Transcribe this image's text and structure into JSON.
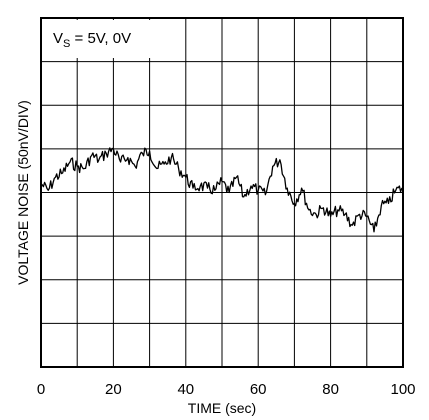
{
  "chart_data": {
    "type": "line",
    "xlabel": "TIME (sec)",
    "ylabel": "VOLTAGE NOISE (50nV/DIV)",
    "xlim": [
      0,
      100
    ],
    "x_ticks": [
      "0",
      "20",
      "40",
      "60",
      "80",
      "100"
    ],
    "y_divisions": 8,
    "grid": true,
    "annotation": {
      "main": "V",
      "sub": "S",
      "rest": " = 5V, 0V"
    },
    "line_color": "#000000",
    "series": [
      {
        "x": [
          0,
          2,
          4,
          6,
          8,
          10,
          12,
          14,
          16,
          18,
          20,
          22,
          24,
          26,
          28,
          30,
          32,
          34,
          36,
          38,
          40,
          42,
          44,
          46,
          48,
          50,
          52,
          54,
          56,
          58,
          60,
          62,
          64,
          66,
          68,
          70,
          72,
          74,
          76,
          78,
          80,
          82,
          84,
          86,
          88,
          90,
          92,
          94,
          96,
          98,
          100
        ],
        "y": [
          0.2,
          0.05,
          0.35,
          0.45,
          0.7,
          0.6,
          0.55,
          0.85,
          0.75,
          0.9,
          1.0,
          0.7,
          0.8,
          0.6,
          0.9,
          0.95,
          0.55,
          0.65,
          0.8,
          0.55,
          0.35,
          0.1,
          0.15,
          0.1,
          0.05,
          0.25,
          0.0,
          0.35,
          -0.1,
          0.15,
          0.05,
          -0.05,
          0.6,
          0.75,
          0.1,
          -0.25,
          0.1,
          -0.4,
          -0.5,
          -0.35,
          -0.55,
          -0.4,
          -0.5,
          -0.75,
          -0.5,
          -0.55,
          -0.9,
          -0.3,
          -0.25,
          0.05,
          0.1
        ]
      }
    ]
  }
}
